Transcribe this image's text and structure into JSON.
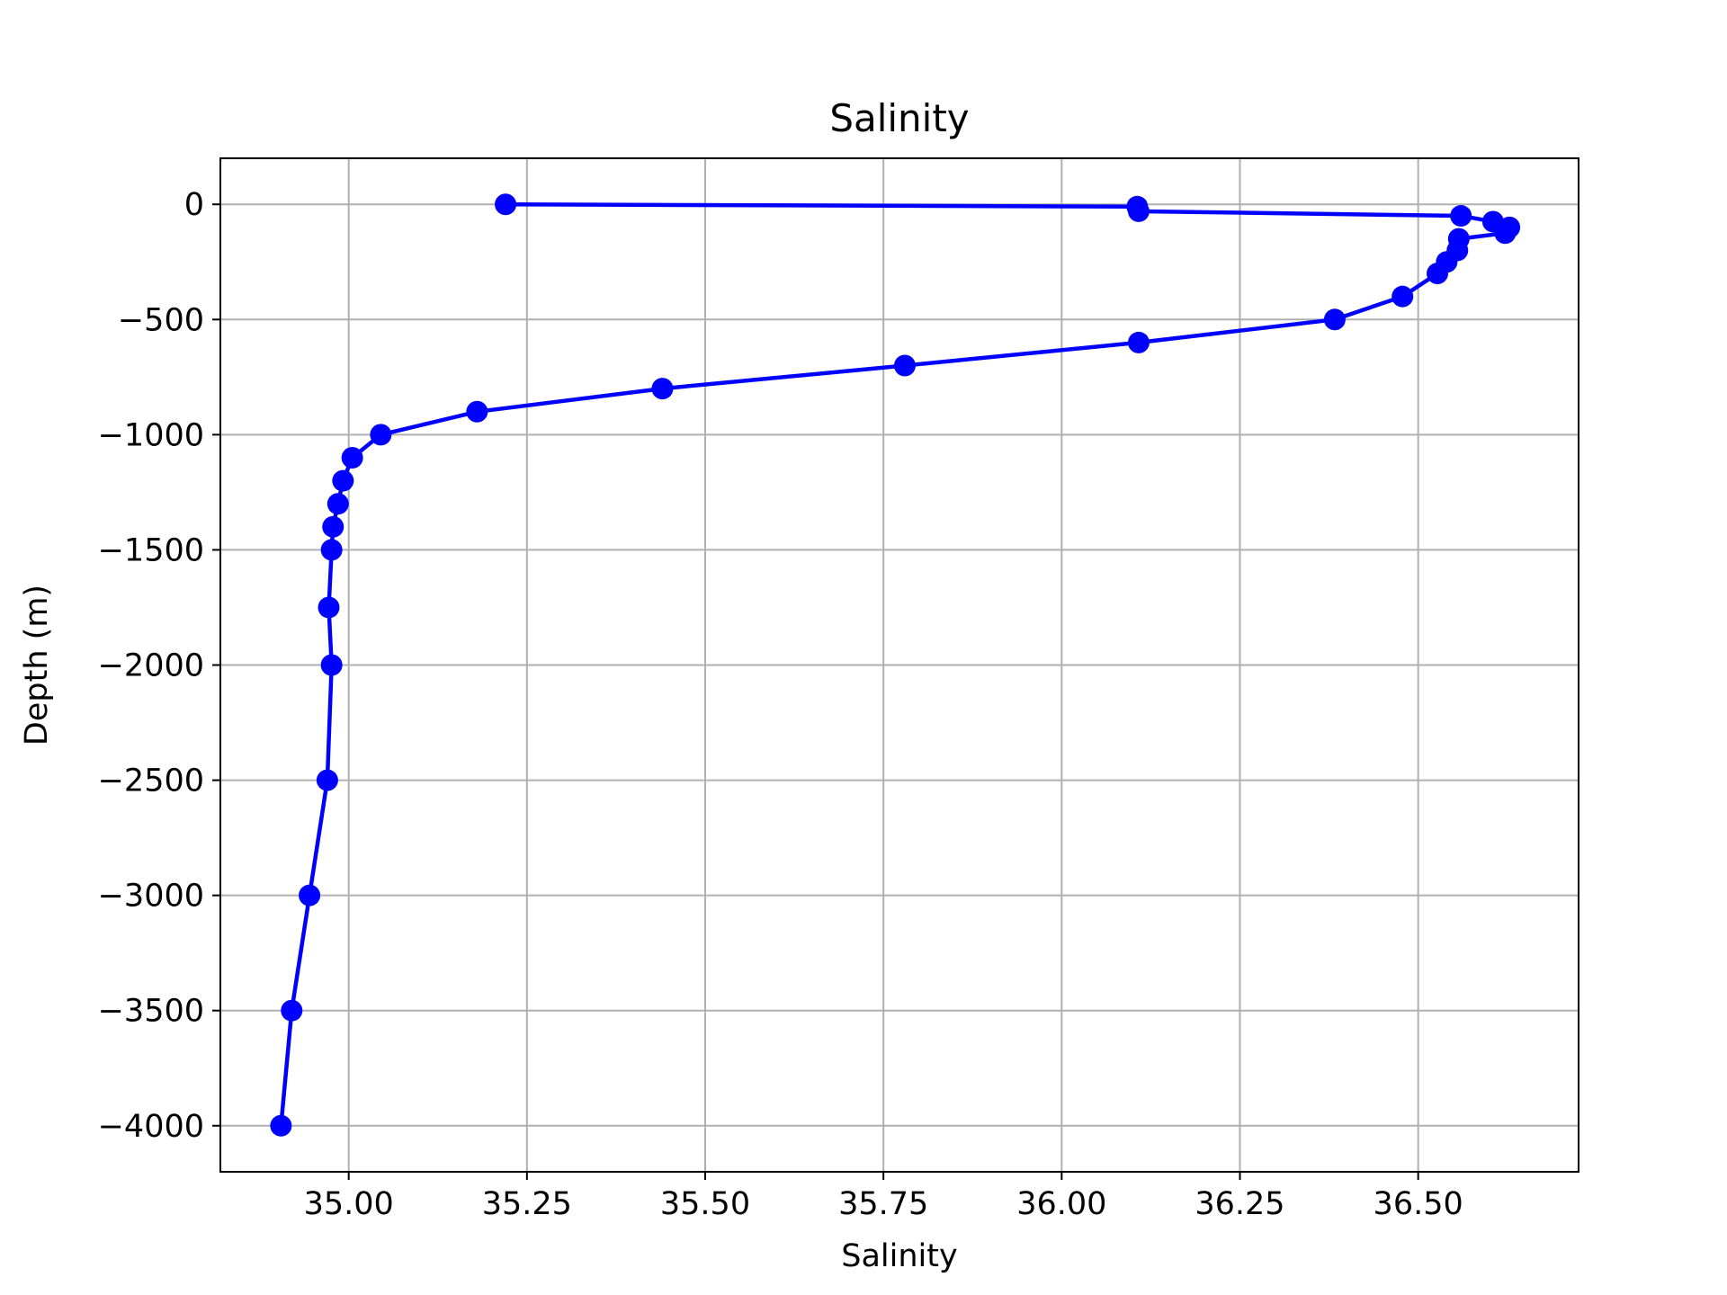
{
  "chart_data": {
    "type": "line",
    "title": "Salinity",
    "xlabel": "Salinity",
    "ylabel": "Depth (m)",
    "xlim": [
      34.82,
      36.725
    ],
    "ylim": [
      -4200,
      200
    ],
    "xticks": [
      35.0,
      35.25,
      35.5,
      35.75,
      36.0,
      36.25,
      36.5
    ],
    "xtick_labels": [
      "35.00",
      "35.25",
      "35.50",
      "35.75",
      "36.00",
      "36.25",
      "36.50"
    ],
    "yticks": [
      0,
      -500,
      -1000,
      -1500,
      -2000,
      -2500,
      -3000,
      -3500,
      -4000
    ],
    "ytick_labels": [
      "0",
      "−500",
      "−1000",
      "−1500",
      "−2000",
      "−2500",
      "−3000",
      "−3500",
      "−4000"
    ],
    "grid": true,
    "colors": {
      "series": "#0000ff",
      "grid": "#b0b0b0",
      "axis": "#000000"
    },
    "series": [
      {
        "marker": "circle",
        "x": [
          35.22,
          36.106,
          36.108,
          36.56,
          36.605,
          36.628,
          36.622,
          36.557,
          36.555,
          36.54,
          36.527,
          36.478,
          36.383,
          36.108,
          35.78,
          35.44,
          35.18,
          35.045,
          35.005,
          34.992,
          34.985,
          34.978,
          34.976,
          34.972,
          34.976,
          34.97,
          34.945,
          34.92,
          34.905
        ],
        "y": [
          0,
          -10,
          -30,
          -50,
          -75,
          -100,
          -125,
          -150,
          -200,
          -250,
          -300,
          -400,
          -500,
          -600,
          -700,
          -800,
          -900,
          -1000,
          -1100,
          -1200,
          -1300,
          -1400,
          -1500,
          -1750,
          -2000,
          -2500,
          -3000,
          -3500,
          -4000
        ]
      }
    ]
  }
}
